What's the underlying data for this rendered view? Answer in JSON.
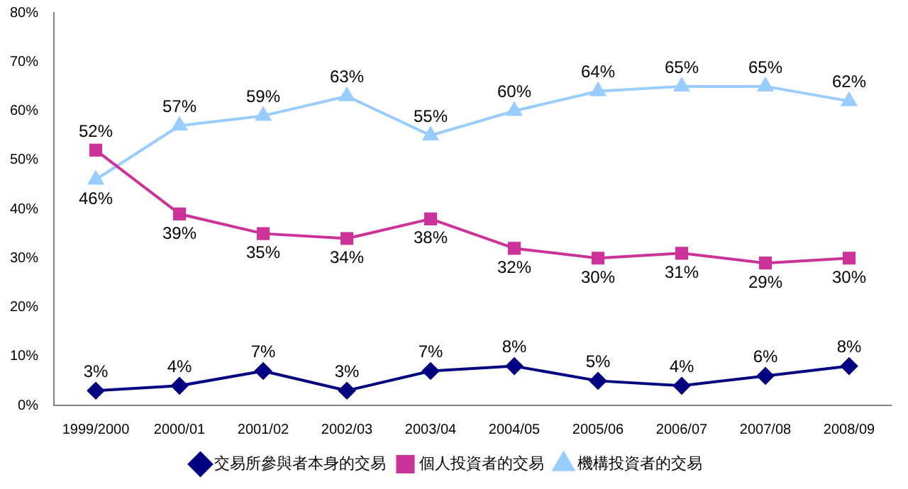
{
  "chart_data": {
    "type": "line",
    "categories": [
      "1999/2000",
      "2000/01",
      "2001/02",
      "2002/03",
      "2003/04",
      "2004/05",
      "2005/06",
      "2006/07",
      "2007/08",
      "2008/09"
    ],
    "series": [
      {
        "name": "交易所參與者本身的交易",
        "color": "#000080",
        "marker": "diamond",
        "values": [
          3,
          4,
          7,
          3,
          7,
          8,
          5,
          4,
          6,
          8
        ],
        "value_labels": [
          "3%",
          "4%",
          "7%",
          "3%",
          "7%",
          "8%",
          "5%",
          "4%",
          "6%",
          "8%"
        ]
      },
      {
        "name": "個人投資者的交易",
        "color": "#cc3399",
        "marker": "square",
        "values": [
          52,
          39,
          35,
          34,
          38,
          32,
          30,
          31,
          29,
          30
        ],
        "value_labels": [
          "52%",
          "39%",
          "35%",
          "34%",
          "38%",
          "32%",
          "30%",
          "31%",
          "29%",
          "30%"
        ]
      },
      {
        "name": "機構投資者的交易",
        "color": "#99ccff",
        "marker": "triangle",
        "values": [
          46,
          57,
          59,
          63,
          55,
          60,
          64,
          65,
          65,
          62
        ],
        "value_labels": [
          "46%",
          "57%",
          "59%",
          "63%",
          "55%",
          "60%",
          "64%",
          "65%",
          "65%",
          "62%"
        ]
      }
    ],
    "ylim": [
      0,
      80
    ],
    "yticks": [
      {
        "value": 0,
        "label": "0%"
      },
      {
        "value": 10,
        "label": "10%"
      },
      {
        "value": 20,
        "label": "20%"
      },
      {
        "value": 30,
        "label": "30%"
      },
      {
        "value": 40,
        "label": "40%"
      },
      {
        "value": 50,
        "label": "50%"
      },
      {
        "value": 60,
        "label": "60%"
      },
      {
        "value": 70,
        "label": "70%"
      },
      {
        "value": 80,
        "label": "80%"
      }
    ],
    "grid": false,
    "legend": "bottom",
    "line_style": "solid"
  }
}
